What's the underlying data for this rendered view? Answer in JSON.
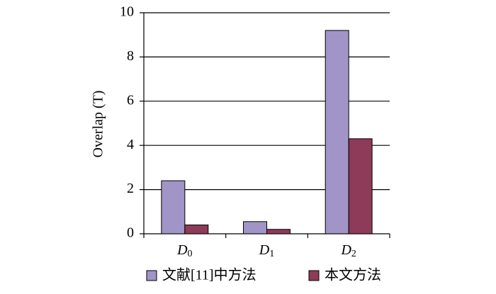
{
  "chart_data": {
    "type": "bar",
    "y_label": "Overlap (T)",
    "categories": [
      "D0",
      "D1",
      "D2"
    ],
    "series": [
      {
        "name": "文献[11]中方法",
        "color": "#a194c6",
        "values": [
          2.4,
          0.55,
          9.2
        ]
      },
      {
        "name": "本文方法",
        "color": "#8e3a59",
        "values": [
          0.4,
          0.2,
          4.3
        ]
      }
    ],
    "ylim": [
      0,
      10
    ],
    "yticks": [
      0,
      2,
      4,
      6,
      8,
      10
    ],
    "grid": true
  }
}
